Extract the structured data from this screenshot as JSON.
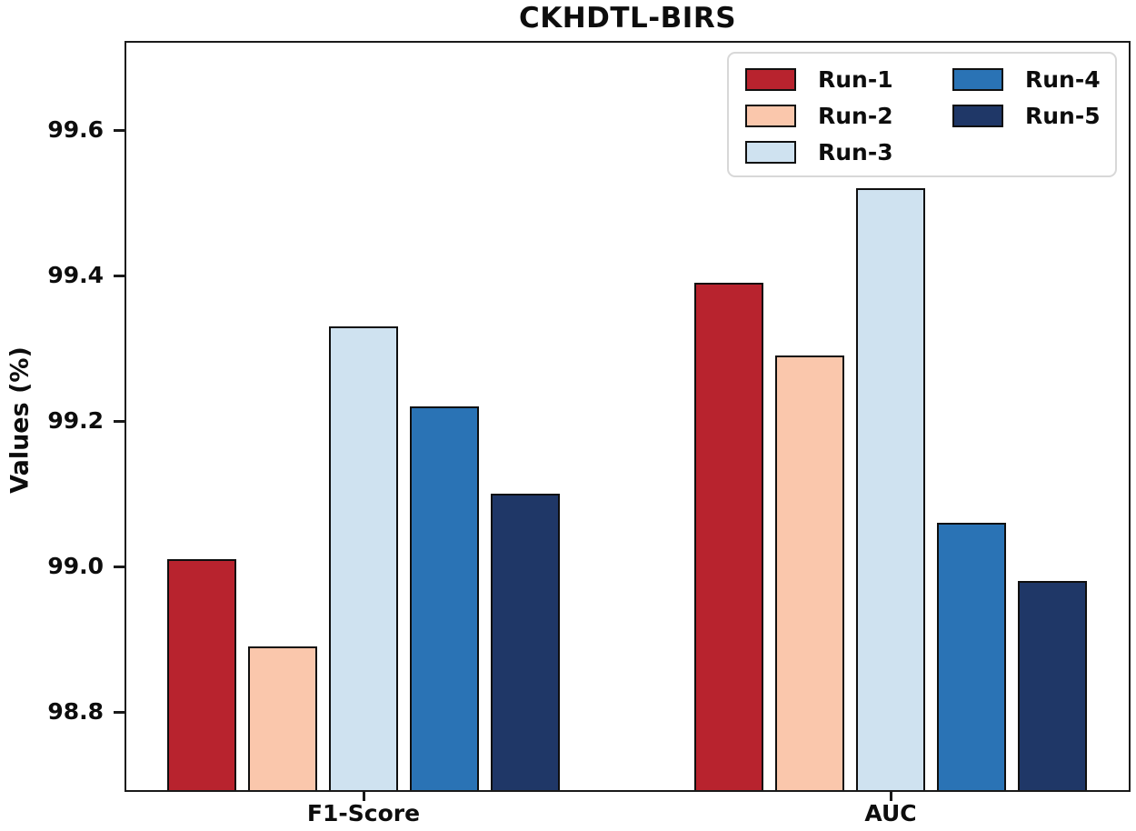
{
  "title": "CKHDTL-BIRS",
  "axis": {
    "ylabel": "Values (%)",
    "yticks": [
      "99.6",
      "99.4",
      "99.2",
      "99.0",
      "98.8"
    ],
    "xticks": [
      "F1-Score",
      "AUC"
    ]
  },
  "legend": {
    "entries": [
      "Run-1",
      "Run-2",
      "Run-3",
      "Run-4",
      "Run-5"
    ]
  },
  "colors": {
    "run1": "#b8232e",
    "run2": "#fac7ac",
    "run3": "#cfe2f0",
    "run4": "#2a73b5",
    "run5": "#1f3767",
    "bar_edge": "#0f0f0f",
    "spine": "#1a1a1a",
    "legend_border": "#d8d8d8"
  },
  "chart_data": {
    "type": "bar",
    "title": "CKHDTL-BIRS",
    "categories": [
      "F1-Score",
      "AUC"
    ],
    "series": [
      {
        "name": "Run-1",
        "color": "#b8232e",
        "values": [
          99.01,
          99.39
        ]
      },
      {
        "name": "Run-2",
        "color": "#fac7ac",
        "values": [
          98.89,
          99.29
        ]
      },
      {
        "name": "Run-3",
        "color": "#cfe2f0",
        "values": [
          99.33,
          99.52
        ]
      },
      {
        "name": "Run-4",
        "color": "#2a73b5",
        "values": [
          99.22,
          99.06
        ]
      },
      {
        "name": "Run-5",
        "color": "#1f3767",
        "values": [
          99.1,
          98.98
        ]
      }
    ],
    "xlabel": "",
    "ylabel": "Values (%)",
    "yticks": [
      99.6,
      99.4,
      99.2,
      99.0,
      98.8
    ],
    "ylim": [
      98.69,
      99.72
    ],
    "grid": false,
    "legend_position": "upper right",
    "legend_columns": 2,
    "bar_edge_color": "#0f0f0f"
  }
}
